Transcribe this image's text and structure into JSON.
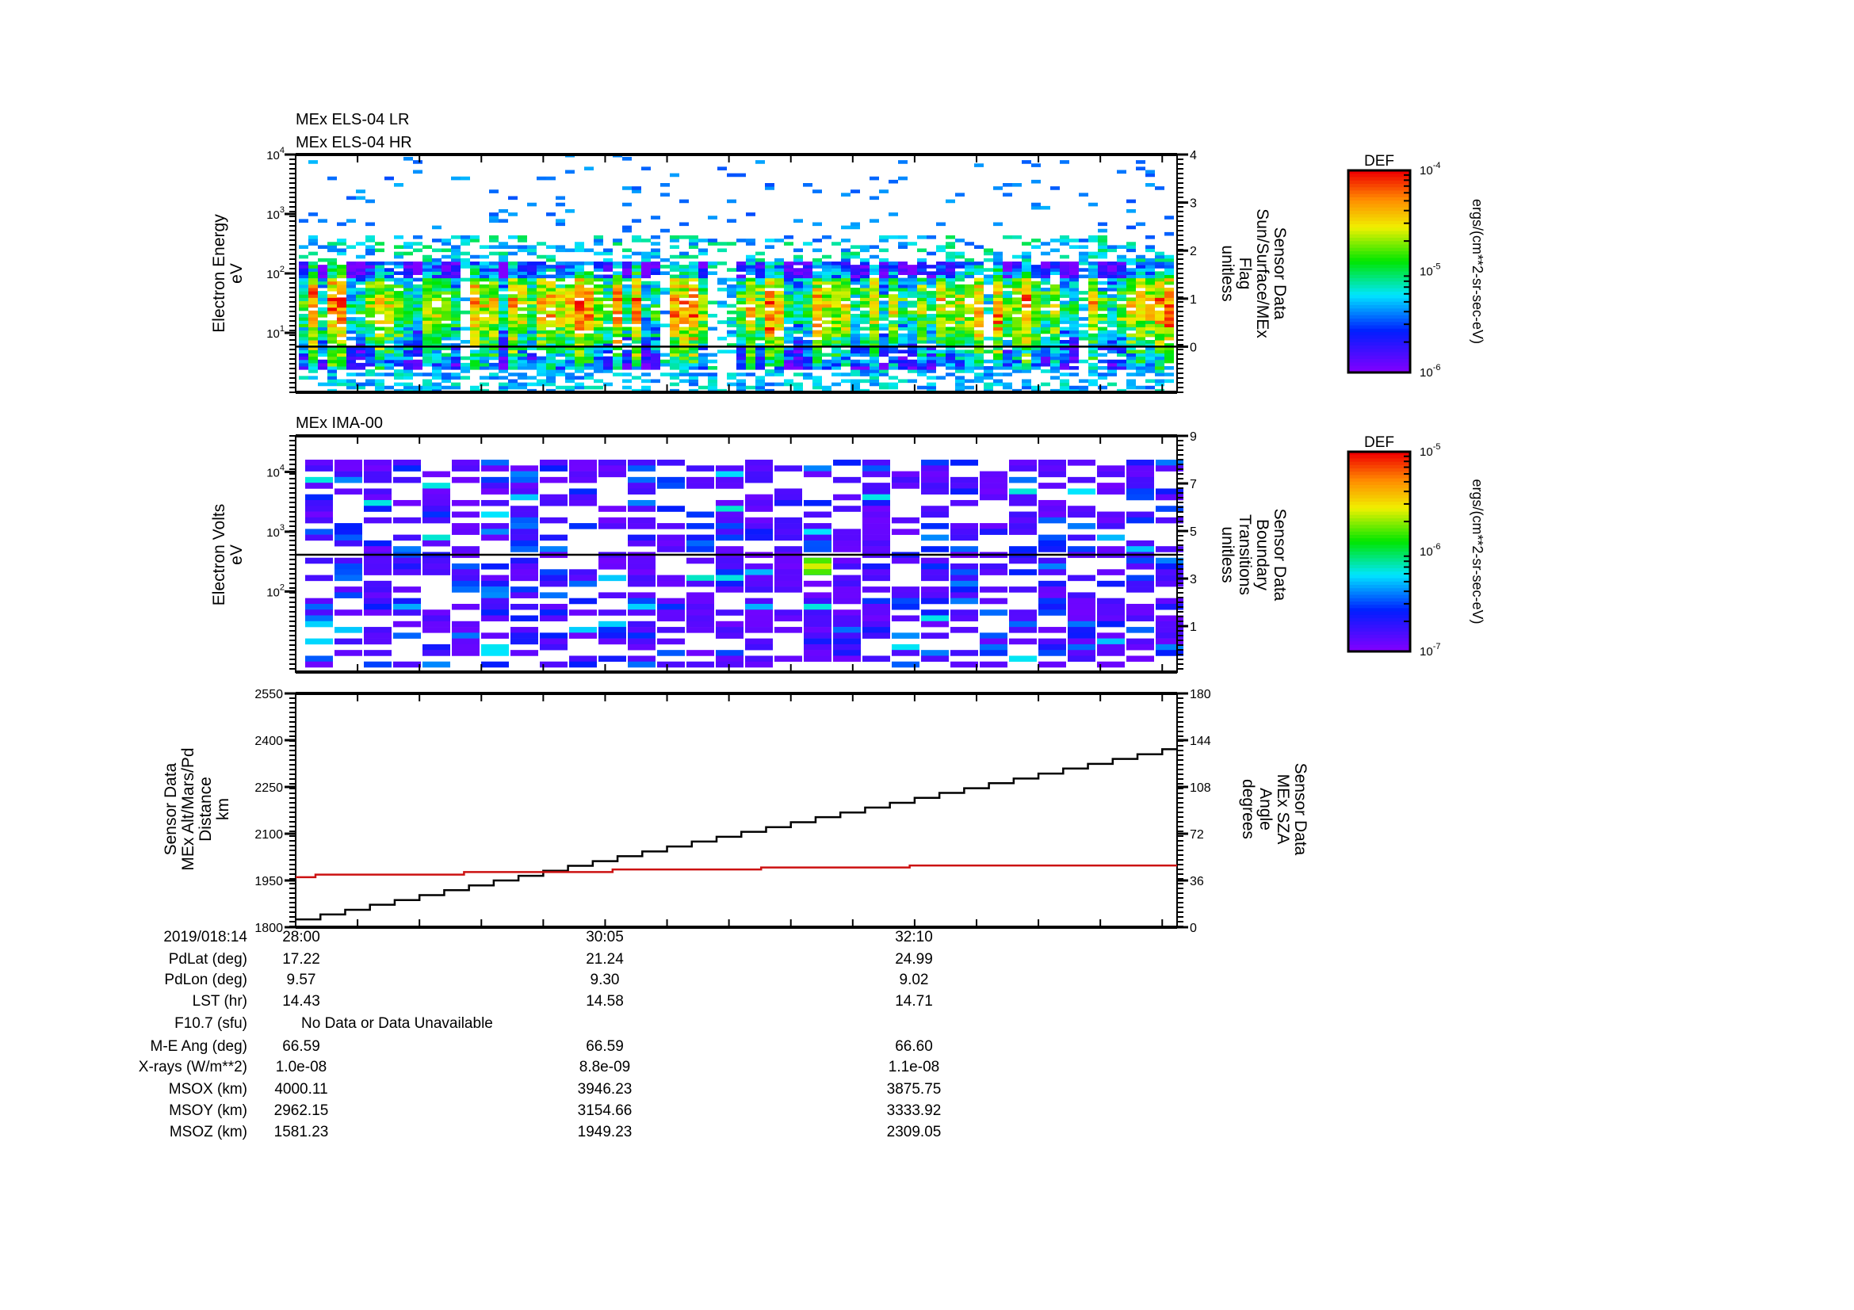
{
  "chart_data": [
    {
      "type": "heatmap",
      "titles": [
        "MEx ELS-04 LR",
        "MEx ELS-04 HR"
      ],
      "ylabel": [
        "Electron Energy",
        "eV"
      ],
      "yscale": "log",
      "ylim": [
        1,
        10000
      ],
      "yticks": [
        {
          "exp": "1",
          "v": 10
        },
        {
          "exp": "2",
          "v": 100
        },
        {
          "exp": "3",
          "v": 1000
        },
        {
          "exp": "4",
          "v": 10000
        }
      ],
      "y2label": [
        "Sensor Data",
        "Sun/Surface/MEx",
        "Flag",
        "unitless"
      ],
      "y2lim": [
        -0.95,
        4
      ],
      "y2ticks": [
        "0",
        "1",
        "2",
        "3",
        "4"
      ],
      "flag_value": 0,
      "colorbar": {
        "title": "DEF",
        "unit": "ergs/(cm**2-sr-sec-eV)",
        "ticks": [
          {
            "exp": "-4"
          },
          {
            "exp": "-5"
          },
          {
            "exp": "-6"
          }
        ],
        "range_log10": [
          -6,
          -4
        ]
      }
    },
    {
      "type": "heatmap",
      "titles": [
        "MEx IMA-00"
      ],
      "ylabel": [
        "Electron Volts",
        "eV"
      ],
      "yscale": "log",
      "ylim": [
        4.5,
        40000
      ],
      "yticks": [
        {
          "exp": "2",
          "v": 100
        },
        {
          "exp": "3",
          "v": 1000
        },
        {
          "exp": "4",
          "v": 10000
        }
      ],
      "y2label": [
        "Sensor Data",
        "Boundary",
        "Transitions",
        "unitless"
      ],
      "y2lim": [
        -0.93,
        9
      ],
      "y2ticks": [
        "1",
        "3",
        "5",
        "7",
        "9"
      ],
      "flag_value": 4,
      "colorbar": {
        "title": "DEF",
        "unit": "ergs/(cm**2-sr-sec-eV)",
        "ticks": [
          {
            "exp": "-5"
          },
          {
            "exp": "-6"
          },
          {
            "exp": "-7"
          }
        ],
        "range_log10": [
          -7,
          -5
        ]
      }
    },
    {
      "type": "line",
      "ylabel": [
        "Sensor Data",
        "MEx Alt/Mars/Pd",
        "Distance",
        "km"
      ],
      "ylim": [
        1800,
        2550
      ],
      "yticks": [
        "1800",
        "1950",
        "2100",
        "2250",
        "2400",
        "2550"
      ],
      "y2label": [
        "Sensor Data",
        "MEx SZA",
        "Angle",
        "degrees"
      ],
      "y2lim": [
        0,
        180
      ],
      "y2ticks": [
        "0",
        "36",
        "72",
        "108",
        "144",
        "180"
      ],
      "xlim_seconds": [
        0,
        356
      ],
      "series": [
        {
          "name": "MEx Alt/Mars/Pd Distance (km)",
          "color": "#000000",
          "step": true,
          "axis": "left",
          "x": [
            0,
            10,
            20,
            30,
            40,
            50,
            60,
            70,
            80,
            90,
            100,
            110,
            120,
            130,
            140,
            150,
            160,
            170,
            180,
            190,
            200,
            210,
            220,
            230,
            240,
            250,
            260,
            270,
            280,
            290,
            300,
            310,
            320,
            330,
            340,
            350
          ],
          "y": [
            1825,
            1841,
            1856,
            1872,
            1887,
            1903,
            1919,
            1934,
            1950,
            1965,
            1981,
            1997,
            2012,
            2028,
            2043,
            2059,
            2075,
            2090,
            2106,
            2121,
            2137,
            2153,
            2168,
            2184,
            2199,
            2215,
            2231,
            2246,
            2262,
            2277,
            2293,
            2309,
            2324,
            2340,
            2355,
            2371
          ]
        },
        {
          "name": "MEx SZA Angle (degrees)",
          "color": "#cc1111",
          "step": true,
          "axis": "right",
          "x": [
            0,
            8,
            68,
            128,
            188,
            248
          ],
          "y": [
            38.5,
            40.5,
            42.5,
            44.5,
            46,
            47.5
          ]
        }
      ]
    }
  ],
  "time_axis": {
    "start_label": "2019/018:14",
    "major_labels": [
      "28:00",
      "30:05",
      "32:10"
    ],
    "major_seconds": [
      0,
      125,
      250
    ],
    "minor_step_seconds": 25
  },
  "ephemeris": {
    "rows": [
      {
        "label": "2019/018:14",
        "values": [
          "28:00",
          "30:05",
          "32:10"
        ]
      },
      {
        "label": "PdLat (deg)",
        "values": [
          "17.22",
          "21.24",
          "24.99"
        ]
      },
      {
        "label": "PdLon (deg)",
        "values": [
          "9.57",
          "9.30",
          "9.02"
        ]
      },
      {
        "label": "LST (hr)",
        "values": [
          "14.43",
          "14.58",
          "14.71"
        ]
      },
      {
        "label": "F10.7 (sfu)",
        "note": "No Data or Data Unavailable"
      },
      {
        "label": "M-E Ang (deg)",
        "values": [
          "66.59",
          "66.59",
          "66.60"
        ]
      },
      {
        "label": "X-rays (W/m**2)",
        "values": [
          "1.0e-08",
          "8.8e-09",
          "1.1e-08"
        ]
      },
      {
        "label": "MSOX (km)",
        "values": [
          "4000.11",
          "3946.23",
          "3875.75"
        ]
      },
      {
        "label": "MSOY (km)",
        "values": [
          "2962.15",
          "3154.66",
          "3333.92"
        ]
      },
      {
        "label": "MSOZ (km)",
        "values": [
          "1581.23",
          "1949.23",
          "2309.05"
        ]
      }
    ]
  }
}
